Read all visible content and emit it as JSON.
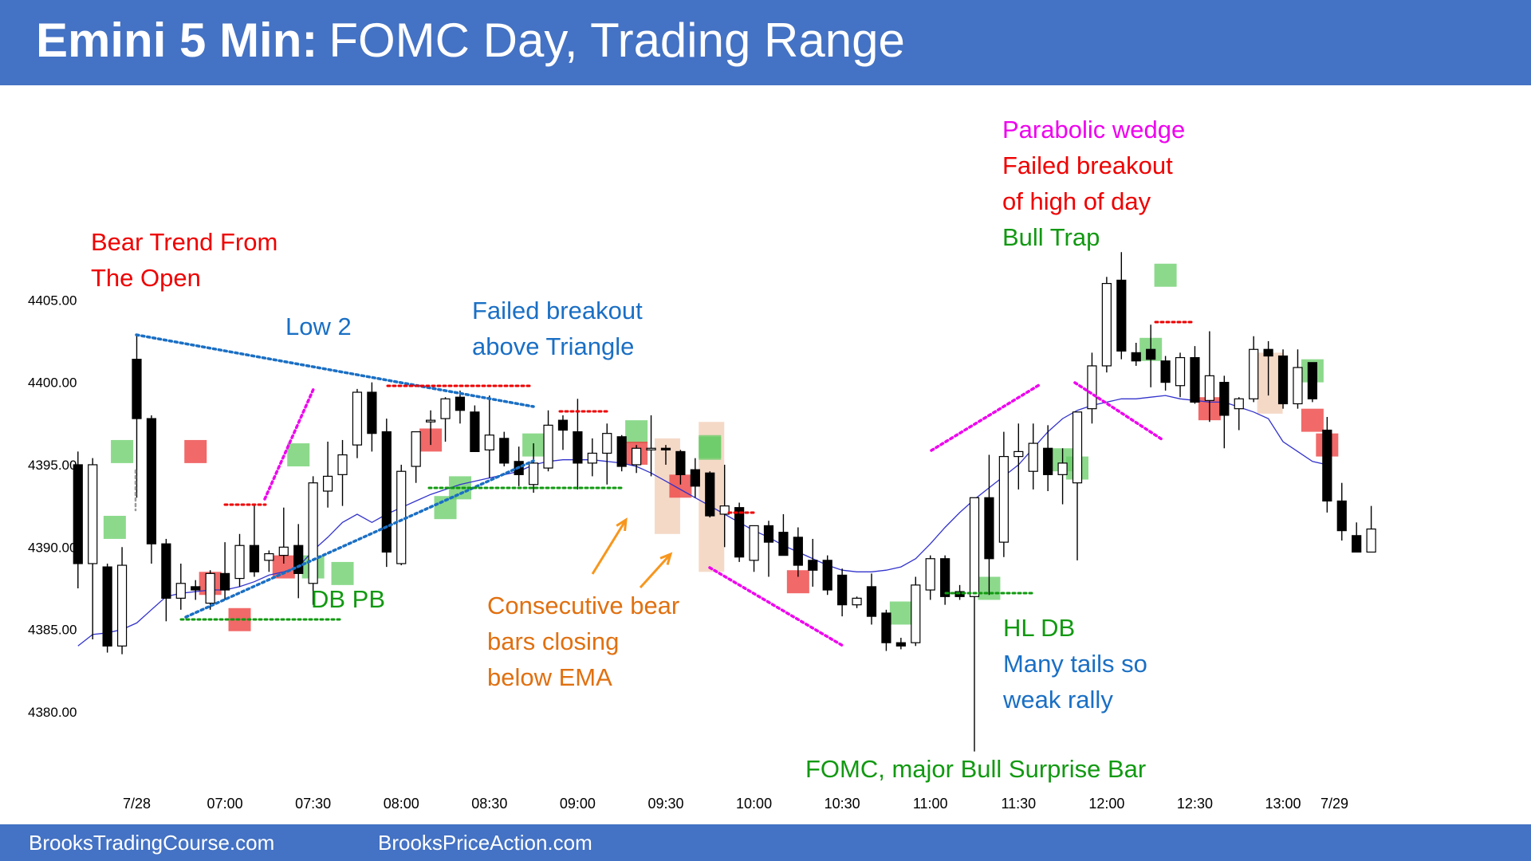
{
  "header": {
    "title_bold": "Emini 5 Min:",
    "title_rest": "FOMC Day, Trading Range"
  },
  "footer": {
    "left": "BrooksTradingCourse.com",
    "right": "BrooksPriceAction.com"
  },
  "colors": {
    "header_bg": "#4472c4",
    "bull_signal": "#66cc66",
    "bear_signal": "#ee4444",
    "ema": "#3333cc",
    "annotation_red": "#ee0000",
    "annotation_blue": "#1a6fc4",
    "annotation_green": "#119911",
    "annotation_orange": "#e07010",
    "annotation_magenta": "#ee00ee"
  },
  "annotations": {
    "bear_trend_1": "Bear Trend From",
    "bear_trend_2": "The Open",
    "low2": "Low 2",
    "failed_bo_1": "Failed breakout",
    "failed_bo_2": "above Triangle",
    "db_pb": "DB PB",
    "consec_1": "Consecutive bear",
    "consec_2": "bars closing",
    "consec_3": "below EMA",
    "parabolic": "Parabolic wedge",
    "failed_hod_1": "Failed breakout",
    "failed_hod_2": "of high of day",
    "bull_trap": "Bull Trap",
    "hl_db": "HL DB",
    "tails_1": "Many tails so",
    "tails_2": "weak rally",
    "fomc": "FOMC, major Bull Surprise Bar"
  },
  "chart_data": {
    "type": "candlestick",
    "title": "Emini 5 Min: FOMC Day, Trading Range",
    "yticks": [
      "4380.00",
      "4385.00",
      "4390.00",
      "4395.00",
      "4400.00",
      "4405.00"
    ],
    "ylim": [
      4377,
      4412
    ],
    "xticks": [
      {
        "label": "7/28",
        "bar": 0
      },
      {
        "label": "07:00",
        "bar": 6
      },
      {
        "label": "07:30",
        "bar": 12
      },
      {
        "label": "08:00",
        "bar": 18
      },
      {
        "label": "08:30",
        "bar": 24
      },
      {
        "label": "09:00",
        "bar": 30
      },
      {
        "label": "09:30",
        "bar": 36
      },
      {
        "label": "10:00",
        "bar": 42
      },
      {
        "label": "10:30",
        "bar": 48
      },
      {
        "label": "11:00",
        "bar": 54
      },
      {
        "label": "11:30",
        "bar": 60
      },
      {
        "label": "12:00",
        "bar": 66
      },
      {
        "label": "12:30",
        "bar": 72
      },
      {
        "label": "13:00",
        "bar": 78
      },
      {
        "label": "7/29",
        "bar": 81.5
      }
    ],
    "first_bar_offset": -4,
    "bars": [
      [
        4395.0,
        4395.8,
        4387.5,
        4389.0
      ],
      [
        4389.0,
        4395.4,
        4384.4,
        4395.0
      ],
      [
        4388.8,
        4389.0,
        4383.6,
        4384.0
      ],
      [
        4384.0,
        4390.0,
        4383.5,
        4388.9
      ],
      [
        4401.4,
        4402.9,
        4393.0,
        4397.8
      ],
      [
        4397.8,
        4398.0,
        4389.0,
        4390.2
      ],
      [
        4390.2,
        4390.5,
        4385.5,
        4386.9
      ],
      [
        4386.9,
        4389.0,
        4386.2,
        4387.8
      ],
      [
        4387.6,
        4388.0,
        4386.8,
        4387.4
      ],
      [
        4386.6,
        4388.6,
        4386.2,
        4388.4
      ],
      [
        4388.4,
        4390.3,
        4386.8,
        4387.4
      ],
      [
        4388.1,
        4390.8,
        4387.6,
        4390.1
      ],
      [
        4390.1,
        4392.6,
        4388.2,
        4388.5
      ],
      [
        4389.2,
        4389.8,
        4388.5,
        4389.6
      ],
      [
        4389.5,
        4392.4,
        4389.0,
        4390.0
      ],
      [
        4390.1,
        4391.4,
        4386.9,
        4388.4
      ],
      [
        4387.8,
        4394.3,
        4386.5,
        4393.9
      ],
      [
        4393.4,
        4396.4,
        4392.4,
        4394.3
      ],
      [
        4394.4,
        4396.5,
        4392.5,
        4395.6
      ],
      [
        4396.2,
        4399.6,
        4395.4,
        4399.4
      ],
      [
        4399.4,
        4400.0,
        4395.8,
        4396.9
      ],
      [
        4397.0,
        4397.8,
        4388.8,
        4389.7
      ],
      [
        4389.0,
        4395.0,
        4388.9,
        4394.6
      ],
      [
        4394.9,
        4397.0,
        4393.9,
        4397.0
      ],
      [
        4397.6,
        4398.3,
        4396.2,
        4397.7
      ],
      [
        4397.8,
        4399.1,
        4396.4,
        4399.0
      ],
      [
        4399.1,
        4399.5,
        4397.5,
        4398.3
      ],
      [
        4398.2,
        4398.6,
        4395.8,
        4395.8
      ],
      [
        4395.9,
        4399.2,
        4394.2,
        4396.8
      ],
      [
        4396.6,
        4397.0,
        4394.9,
        4395.1
      ],
      [
        4395.2,
        4396.1,
        4393.7,
        4394.4
      ],
      [
        4393.8,
        4396.3,
        4393.3,
        4395.1
      ],
      [
        4394.8,
        4398.3,
        4394.6,
        4397.4
      ],
      [
        4397.7,
        4398.0,
        4395.9,
        4397.1
      ],
      [
        4397.0,
        4399.0,
        4393.5,
        4395.1
      ],
      [
        4395.1,
        4396.6,
        4394.3,
        4395.7
      ],
      [
        4395.7,
        4397.5,
        4393.8,
        4396.9
      ],
      [
        4396.7,
        4396.8,
        4394.6,
        4394.9
      ],
      [
        4395.0,
        4396.2,
        4394.5,
        4396.0
      ],
      [
        4396.0,
        4398.0,
        4394.3,
        4396.0
      ],
      [
        4396.0,
        4396.2,
        4395.0,
        4395.9
      ],
      [
        4395.8,
        4395.9,
        4393.8,
        4394.4
      ],
      [
        4394.7,
        4395.4,
        4393.0,
        4393.7
      ],
      [
        4394.5,
        4394.6,
        4391.8,
        4391.9
      ],
      [
        4392.0,
        4395.0,
        4390.0,
        4392.5
      ],
      [
        4392.4,
        4392.7,
        4389.1,
        4389.4
      ],
      [
        4389.2,
        4391.2,
        4388.5,
        4391.3
      ],
      [
        4391.3,
        4391.6,
        4388.2,
        4390.3
      ],
      [
        4390.9,
        4392.0,
        4389.5,
        4389.5
      ],
      [
        4390.6,
        4391.2,
        4388.2,
        4388.9
      ],
      [
        4389.2,
        4390.5,
        4387.6,
        4388.6
      ],
      [
        4389.2,
        4389.5,
        4387.1,
        4387.4
      ],
      [
        4388.3,
        4388.7,
        4385.8,
        4386.5
      ],
      [
        4386.5,
        4387.0,
        4386.3,
        4386.9
      ],
      [
        4387.6,
        4388.4,
        4385.3,
        4385.8
      ],
      [
        4386.0,
        4386.2,
        4383.7,
        4384.2
      ],
      [
        4384.2,
        4384.5,
        4383.8,
        4384.0
      ],
      [
        4384.2,
        4388.2,
        4384.0,
        4387.7
      ],
      [
        4387.4,
        4389.5,
        4386.8,
        4389.3
      ],
      [
        4389.3,
        4389.5,
        4386.5,
        4387.0
      ],
      [
        4387.3,
        4387.7,
        4386.8,
        4387.0
      ],
      [
        4387.0,
        4392.3,
        4377.6,
        4393.0
      ],
      [
        4393.0,
        4395.6,
        4387.1,
        4389.3
      ],
      [
        4390.3,
        4397.0,
        4389.4,
        4395.5
      ],
      [
        4395.5,
        4397.5,
        4393.5,
        4395.8
      ],
      [
        4394.6,
        4397.5,
        4393.5,
        4396.3
      ],
      [
        4396.0,
        4397.4,
        4393.4,
        4394.4
      ],
      [
        4394.4,
        4396.0,
        4392.6,
        4395.1
      ],
      [
        4393.9,
        4397.1,
        4389.2,
        4398.2
      ],
      [
        4398.4,
        4401.8,
        4397.5,
        4401.0
      ],
      [
        4401.0,
        4406.4,
        4400.6,
        4406.0
      ],
      [
        4406.2,
        4407.9,
        4401.4,
        4401.9
      ],
      [
        4401.8,
        4402.4,
        4401.0,
        4401.3
      ],
      [
        4402.0,
        4403.5,
        4399.7,
        4401.4
      ],
      [
        4401.3,
        4401.6,
        4399.5,
        4400.0
      ],
      [
        4399.8,
        4401.8,
        4399.1,
        4401.5
      ],
      [
        4401.5,
        4402.2,
        4398.7,
        4398.8
      ],
      [
        4398.9,
        4403.1,
        4397.6,
        4400.4
      ],
      [
        4400.0,
        4400.4,
        4396.0,
        4398.0
      ],
      [
        4398.4,
        4399.1,
        4397.1,
        4399.0
      ],
      [
        4399.0,
        4402.8,
        4398.8,
        4402.0
      ],
      [
        4402.0,
        4402.5,
        4399.2,
        4401.6
      ],
      [
        4401.6,
        4402.0,
        4398.4,
        4398.7
      ],
      [
        4398.7,
        4402.0,
        4398.4,
        4400.9
      ],
      [
        4401.2,
        4401.2,
        4398.8,
        4399.0
      ],
      [
        4397.1,
        4397.9,
        4392.1,
        4392.8
      ],
      [
        4392.8,
        4393.9,
        4390.4,
        4391.0
      ],
      [
        4390.7,
        4391.5,
        4389.7,
        4389.7
      ],
      [
        4389.7,
        4392.5,
        4389.7,
        4391.1
      ]
    ],
    "ema": [
      [
        -4,
        4384.0
      ],
      [
        -3,
        4384.7
      ],
      [
        -2,
        4384.8
      ],
      [
        -1,
        4385.0
      ],
      [
        0,
        4385.4
      ],
      [
        1,
        4386.2
      ],
      [
        2,
        4387.0
      ],
      [
        3,
        4387.2
      ],
      [
        4,
        4387.3
      ],
      [
        5,
        4387.4
      ],
      [
        6,
        4387.4
      ],
      [
        7,
        4387.6
      ],
      [
        8,
        4387.9
      ],
      [
        9,
        4388.3
      ],
      [
        10,
        4388.5
      ],
      [
        11,
        4388.8
      ],
      [
        12,
        4389.8
      ],
      [
        13,
        4390.6
      ],
      [
        14,
        4391.5
      ],
      [
        15,
        4392.0
      ],
      [
        16,
        4391.5
      ],
      [
        17,
        4392.0
      ],
      [
        18,
        4392.4
      ],
      [
        19,
        4392.8
      ],
      [
        20,
        4393.2
      ],
      [
        21,
        4393.5
      ],
      [
        22,
        4393.8
      ],
      [
        23,
        4394.0
      ],
      [
        24,
        4394.2
      ],
      [
        25,
        4394.4
      ],
      [
        26,
        4394.6
      ],
      [
        27,
        4395.0
      ],
      [
        28,
        4395.2
      ],
      [
        29,
        4395.3
      ],
      [
        30,
        4395.3
      ],
      [
        31,
        4395.3
      ],
      [
        32,
        4395.2
      ],
      [
        33,
        4395.1
      ],
      [
        34,
        4394.9
      ],
      [
        35,
        4394.5
      ],
      [
        36,
        4394.0
      ],
      [
        37,
        4393.5
      ],
      [
        38,
        4393.0
      ],
      [
        39,
        4392.5
      ],
      [
        40,
        4392.0
      ],
      [
        41,
        4391.5
      ],
      [
        42,
        4391.0
      ],
      [
        43,
        4390.6
      ],
      [
        44,
        4390.1
      ],
      [
        45,
        4389.7
      ],
      [
        46,
        4389.3
      ],
      [
        47,
        4388.9
      ],
      [
        48,
        4388.6
      ],
      [
        49,
        4388.5
      ],
      [
        50,
        4388.5
      ],
      [
        51,
        4388.6
      ],
      [
        52,
        4388.8
      ],
      [
        53,
        4389.3
      ],
      [
        54,
        4390.2
      ],
      [
        55,
        4391.2
      ],
      [
        56,
        4392.1
      ],
      [
        57,
        4392.9
      ],
      [
        58,
        4393.6
      ],
      [
        59,
        4394.3
      ],
      [
        60,
        4395.0
      ],
      [
        61,
        4396.0
      ],
      [
        62,
        4397.0
      ],
      [
        63,
        4397.8
      ],
      [
        64,
        4398.3
      ],
      [
        65,
        4398.6
      ],
      [
        66,
        4398.8
      ],
      [
        67,
        4399.0
      ],
      [
        68,
        4399.0
      ],
      [
        69,
        4399.1
      ],
      [
        70,
        4399.2
      ],
      [
        71,
        4399.0
      ],
      [
        72,
        4398.9
      ],
      [
        73,
        4398.8
      ],
      [
        74,
        4398.8
      ],
      [
        75,
        4398.5
      ],
      [
        76,
        4398.2
      ],
      [
        77,
        4397.8
      ],
      [
        78,
        4396.4
      ],
      [
        79,
        4395.8
      ],
      [
        80,
        4395.2
      ],
      [
        81,
        4395.0
      ]
    ]
  }
}
